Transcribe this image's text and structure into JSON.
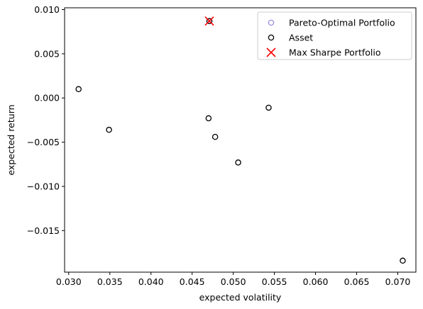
{
  "chart_data": {
    "type": "scatter",
    "title": "",
    "xlabel": "expected volatility",
    "ylabel": "expected return",
    "xlim": [
      0.0295,
      0.0722
    ],
    "ylim": [
      -0.0197,
      0.0102
    ],
    "grid": false,
    "legend_placement": "top-right",
    "x_ticks": [
      0.03,
      0.035,
      0.04,
      0.045,
      0.05,
      0.055,
      0.06,
      0.065,
      0.07
    ],
    "x_tick_labels": [
      "0.030",
      "0.035",
      "0.040",
      "0.045",
      "0.050",
      "0.055",
      "0.060",
      "0.065",
      "0.070"
    ],
    "y_ticks": [
      0.01,
      0.005,
      0.0,
      -0.005,
      -0.01,
      -0.015
    ],
    "y_tick_labels": [
      "0.010",
      "0.005",
      "0.000",
      "−0.005",
      "−0.010",
      "−0.015"
    ],
    "series": [
      {
        "name": "Pareto-Optimal Portfolio",
        "marker": "open-circle",
        "color": "#9a8fe0",
        "points": [
          [
            0.0471,
            0.0087
          ]
        ]
      },
      {
        "name": "Asset",
        "marker": "open-circle",
        "color": "#000000",
        "points": [
          [
            0.0312,
            0.001
          ],
          [
            0.0349,
            -0.0036
          ],
          [
            0.047,
            -0.0023
          ],
          [
            0.0478,
            -0.0044
          ],
          [
            0.0506,
            -0.0073
          ],
          [
            0.0543,
            -0.0011
          ],
          [
            0.0471,
            0.0087
          ],
          [
            0.0706,
            -0.0184
          ]
        ]
      },
      {
        "name": "Max Sharpe Portfolio",
        "marker": "x",
        "color": "#ff0000",
        "points": [
          [
            0.0471,
            0.0087
          ]
        ]
      }
    ]
  }
}
